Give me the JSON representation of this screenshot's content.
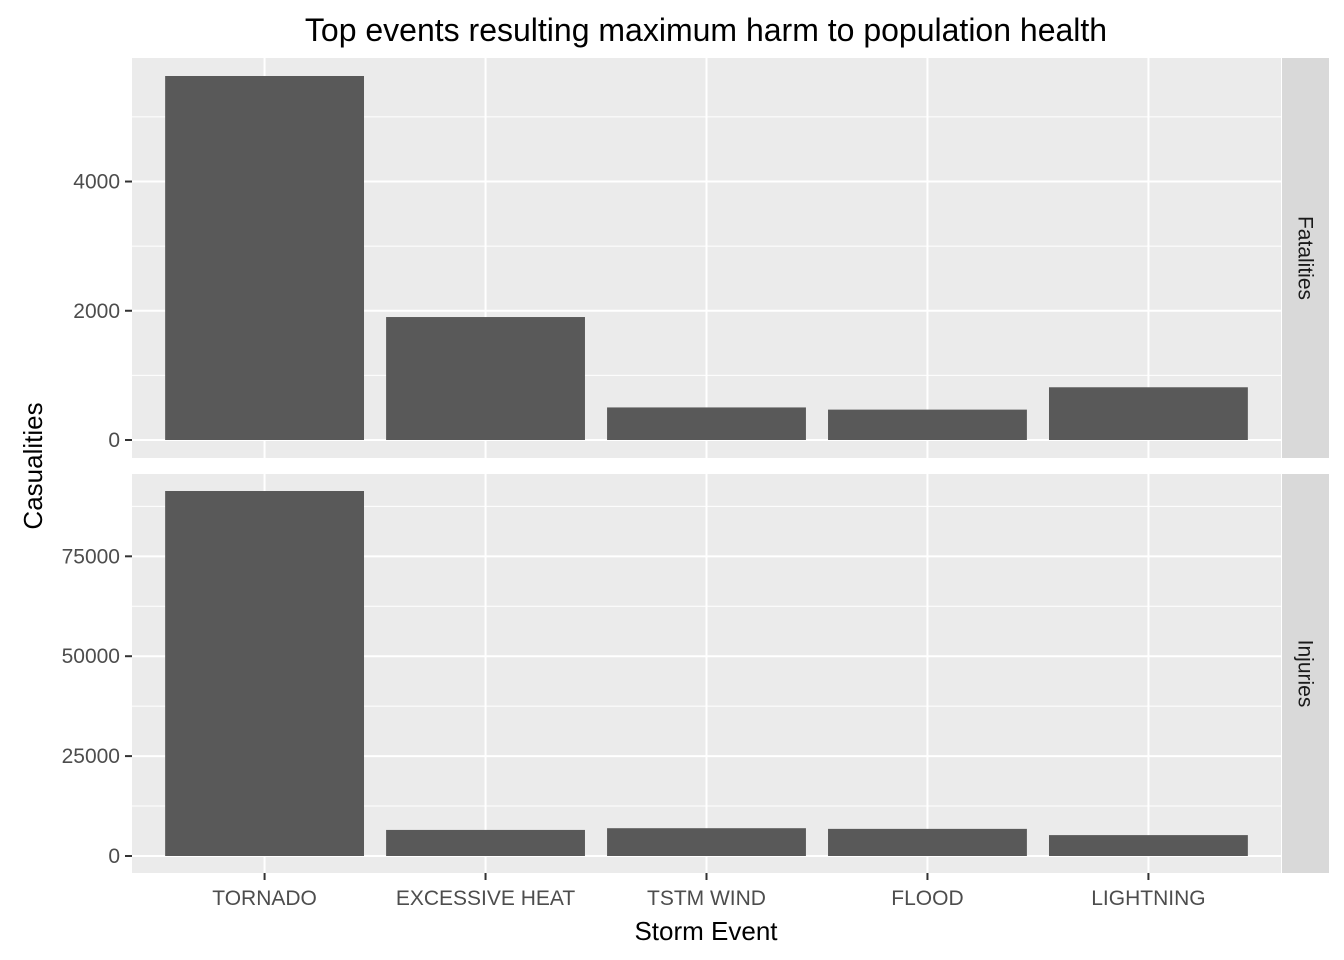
{
  "chart_data": {
    "type": "bar",
    "title": "Top events resulting maximum harm to population health",
    "xlabel": "Storm Event",
    "ylabel": "Casualities",
    "categories": [
      "TORNADO",
      "EXCESSIVE HEAT",
      "TSTM WIND",
      "FLOOD",
      "LIGHTNING"
    ],
    "facets": [
      {
        "name": "Fatalities",
        "values": [
          5633,
          1903,
          504,
          470,
          816
        ],
        "ylim": [
          0,
          5633
        ],
        "yticks": [
          0,
          2000,
          4000
        ],
        "ytick_labels": [
          "0",
          "2000",
          "4000"
        ]
      },
      {
        "name": "Injuries",
        "values": [
          91346,
          6525,
          6957,
          6789,
          5230
        ],
        "ylim": [
          0,
          91346
        ],
        "yticks": [
          0,
          25000,
          50000,
          75000
        ],
        "ytick_labels": [
          "0",
          "25000",
          "50000",
          "75000"
        ]
      }
    ],
    "grid": true,
    "legend": "none",
    "colors": {
      "bar": "#595959",
      "panel": "#ebebeb",
      "strip": "#d9d9d9",
      "grid": "#ffffff"
    }
  }
}
